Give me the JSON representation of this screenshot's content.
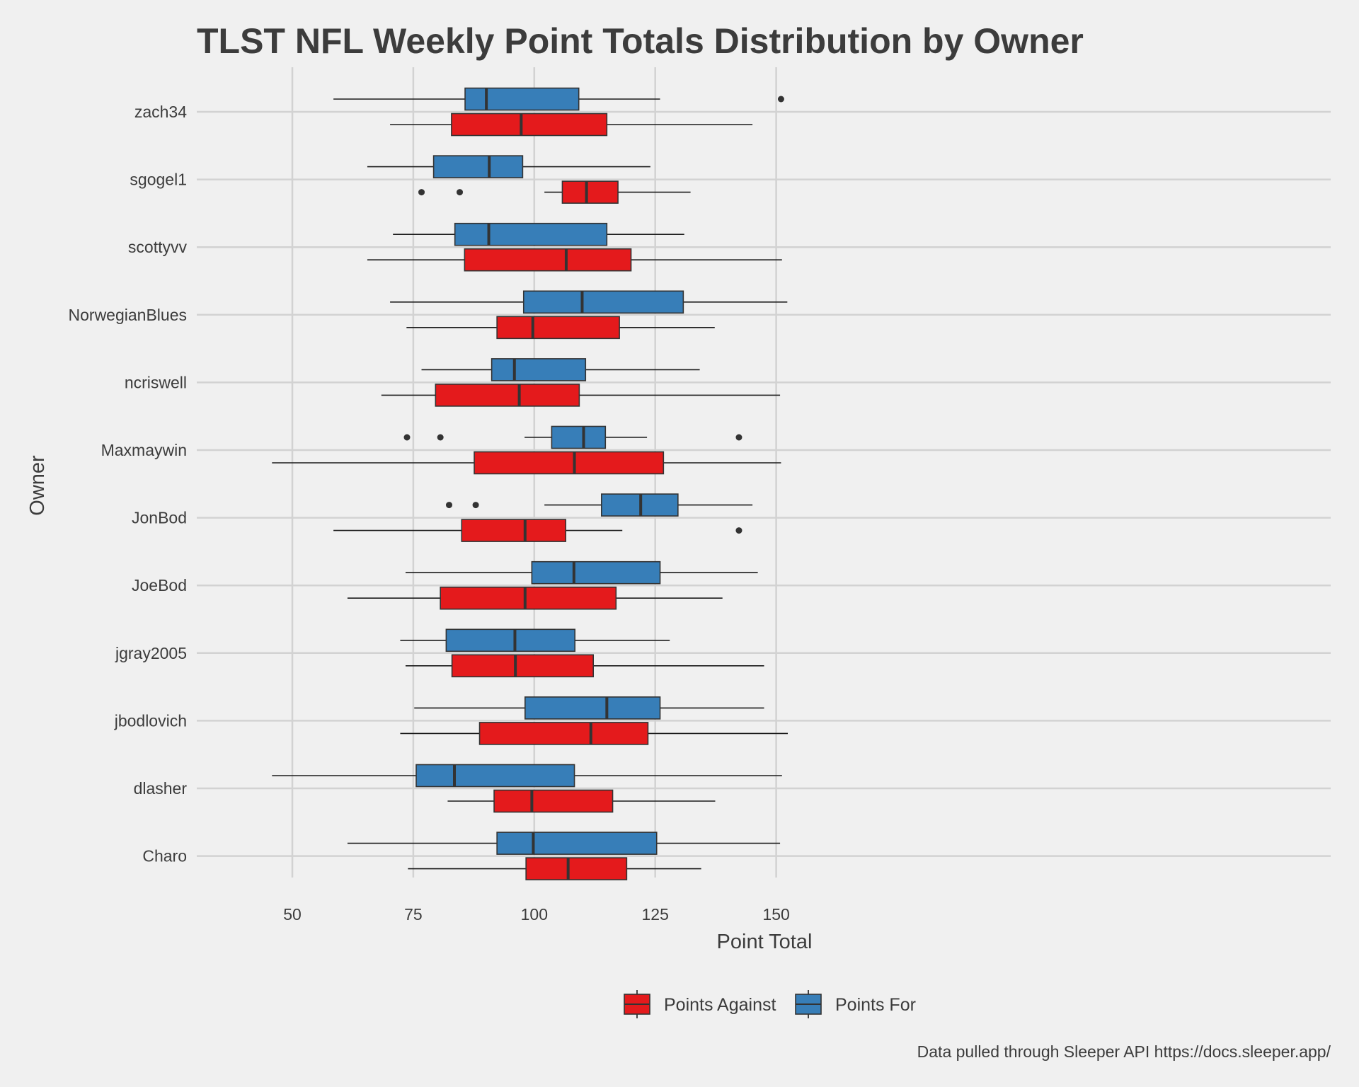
{
  "colors": {
    "background": "#f0f0f0",
    "grid": "#d2d2d2",
    "text": "#3c3c3c",
    "points_against": "#e41a1c",
    "points_for": "#377eb8",
    "outline": "#333333"
  },
  "chart_data": {
    "type": "boxplot",
    "orientation": "horizontal",
    "title": "TLST NFL Weekly Point Totals Distribution by Owner",
    "xlabel": "Point Total",
    "ylabel": "Owner",
    "xlim": [
      40,
      159
    ],
    "xticks": [
      50,
      75,
      100,
      125,
      150
    ],
    "grid": true,
    "legend_position": "bottom",
    "caption": "Data pulled through Sleeper API https://docs.sleeper.app/",
    "categories": [
      "zach34",
      "sgogel1",
      "scottyvv",
      "NorwegianBlues",
      "ncriswell",
      "Maxmaywin",
      "JonBod",
      "JoeBod",
      "jgray2005",
      "jbodlovich",
      "dlasher",
      "Charo"
    ],
    "series": [
      {
        "name": "Points Against",
        "color": "#e41a1c",
        "boxes": [
          {
            "owner": "zach34",
            "whisker_low": 70.2,
            "q1": 82.9,
            "median": 97.3,
            "q3": 115.0,
            "whisker_high": 145.1,
            "outliers": []
          },
          {
            "owner": "sgogel1",
            "whisker_low": 102.1,
            "q1": 105.8,
            "median": 110.8,
            "q3": 117.3,
            "whisker_high": 132.3,
            "outliers": [
              76.7,
              84.6
            ]
          },
          {
            "owner": "scottyvv",
            "whisker_low": 65.5,
            "q1": 85.6,
            "median": 106.6,
            "q3": 120.0,
            "whisker_high": 151.2,
            "outliers": []
          },
          {
            "owner": "NorwegianBlues",
            "whisker_low": 73.6,
            "q1": 92.3,
            "median": 99.7,
            "q3": 117.6,
            "whisker_high": 137.3,
            "outliers": []
          },
          {
            "owner": "ncriswell",
            "whisker_low": 68.4,
            "q1": 79.6,
            "median": 96.9,
            "q3": 109.3,
            "whisker_high": 150.8,
            "outliers": []
          },
          {
            "owner": "Maxmaywin",
            "whisker_low": 45.8,
            "q1": 87.6,
            "median": 108.3,
            "q3": 126.7,
            "whisker_high": 151.0,
            "outliers": []
          },
          {
            "owner": "JonBod",
            "whisker_low": 58.5,
            "q1": 85.0,
            "median": 98.1,
            "q3": 106.5,
            "whisker_high": 118.2,
            "outliers": [
              142.3
            ]
          },
          {
            "owner": "JoeBod",
            "whisker_low": 61.4,
            "q1": 80.6,
            "median": 98.1,
            "q3": 116.9,
            "whisker_high": 138.9,
            "outliers": []
          },
          {
            "owner": "jgray2005",
            "whisker_low": 73.4,
            "q1": 83.0,
            "median": 96.1,
            "q3": 112.2,
            "whisker_high": 147.5,
            "outliers": []
          },
          {
            "owner": "jbodlovich",
            "whisker_low": 72.3,
            "q1": 88.7,
            "median": 111.7,
            "q3": 123.5,
            "whisker_high": 152.4,
            "outliers": []
          },
          {
            "owner": "dlasher",
            "whisker_low": 82.1,
            "q1": 91.7,
            "median": 99.5,
            "q3": 116.2,
            "whisker_high": 137.4,
            "outliers": []
          },
          {
            "owner": "Charo",
            "whisker_low": 73.9,
            "q1": 98.3,
            "median": 107.0,
            "q3": 119.1,
            "whisker_high": 134.5,
            "outliers": []
          }
        ]
      },
      {
        "name": "Points For",
        "color": "#377eb8",
        "boxes": [
          {
            "owner": "zach34",
            "whisker_low": 58.5,
            "q1": 85.7,
            "median": 90.1,
            "q3": 109.2,
            "whisker_high": 126.0,
            "outliers": [
              151.0
            ]
          },
          {
            "owner": "sgogel1",
            "whisker_low": 65.5,
            "q1": 79.2,
            "median": 90.7,
            "q3": 97.6,
            "whisker_high": 124.0,
            "outliers": []
          },
          {
            "owner": "scottyvv",
            "whisker_low": 70.8,
            "q1": 83.6,
            "median": 90.6,
            "q3": 115.0,
            "whisker_high": 131.0,
            "outliers": []
          },
          {
            "owner": "NorwegianBlues",
            "whisker_low": 70.2,
            "q1": 97.8,
            "median": 109.9,
            "q3": 130.8,
            "whisker_high": 152.3,
            "outliers": []
          },
          {
            "owner": "ncriswell",
            "whisker_low": 76.7,
            "q1": 91.2,
            "median": 95.9,
            "q3": 110.6,
            "whisker_high": 134.2,
            "outliers": []
          },
          {
            "owner": "Maxmaywin",
            "whisker_low": 98.0,
            "q1": 103.6,
            "median": 110.2,
            "q3": 114.7,
            "whisker_high": 123.3,
            "outliers": [
              73.7,
              80.6,
              142.3
            ]
          },
          {
            "owner": "JonBod",
            "whisker_low": 102.1,
            "q1": 113.9,
            "median": 122.0,
            "q3": 129.7,
            "whisker_high": 145.1,
            "outliers": [
              82.4,
              87.9
            ]
          },
          {
            "owner": "JoeBod",
            "whisker_low": 73.4,
            "q1": 99.5,
            "median": 108.2,
            "q3": 126.0,
            "whisker_high": 146.2,
            "outliers": []
          },
          {
            "owner": "jgray2005",
            "whisker_low": 72.3,
            "q1": 81.8,
            "median": 96.0,
            "q3": 108.4,
            "whisker_high": 128.0,
            "outliers": []
          },
          {
            "owner": "jbodlovich",
            "whisker_low": 75.2,
            "q1": 98.1,
            "median": 115.0,
            "q3": 126.0,
            "whisker_high": 147.5,
            "outliers": []
          },
          {
            "owner": "dlasher",
            "whisker_low": 45.8,
            "q1": 75.6,
            "median": 83.5,
            "q3": 108.3,
            "whisker_high": 151.2,
            "outliers": []
          },
          {
            "owner": "Charo",
            "whisker_low": 61.4,
            "q1": 92.3,
            "median": 99.8,
            "q3": 125.3,
            "whisker_high": 150.8,
            "outliers": []
          }
        ]
      }
    ]
  }
}
